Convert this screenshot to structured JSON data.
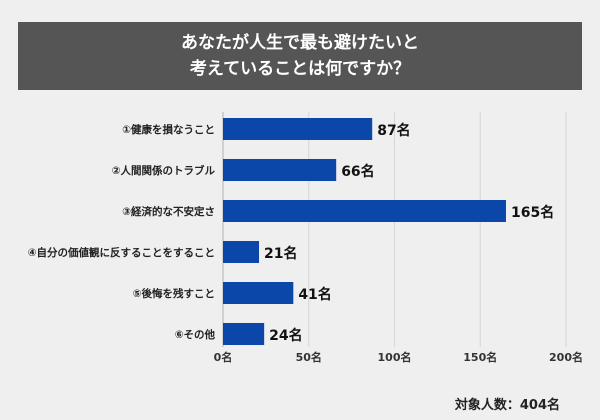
{
  "chart_data": {
    "type": "bar",
    "orientation": "horizontal",
    "title_lines": [
      "あなたが人生で最も避けたいと",
      "考えていることは何ですか？"
    ],
    "categories": [
      "①健康を損なうこと",
      "②人間関係のトラブル",
      "③経済的な不安定さ",
      "④自分の価値観に反することをすること",
      "⑤後悔を残すこと",
      "⑥その他"
    ],
    "values": [
      87,
      66,
      165,
      21,
      41,
      24
    ],
    "value_suffix": "名",
    "xlim": [
      0,
      200
    ],
    "xticks": [
      0,
      50,
      100,
      150,
      200
    ],
    "xtick_labels": [
      "0名",
      "50名",
      "100名",
      "150名",
      "200名"
    ],
    "grid": true,
    "bar_color": "#0b47a8",
    "footnote": "対象人数：404名"
  }
}
